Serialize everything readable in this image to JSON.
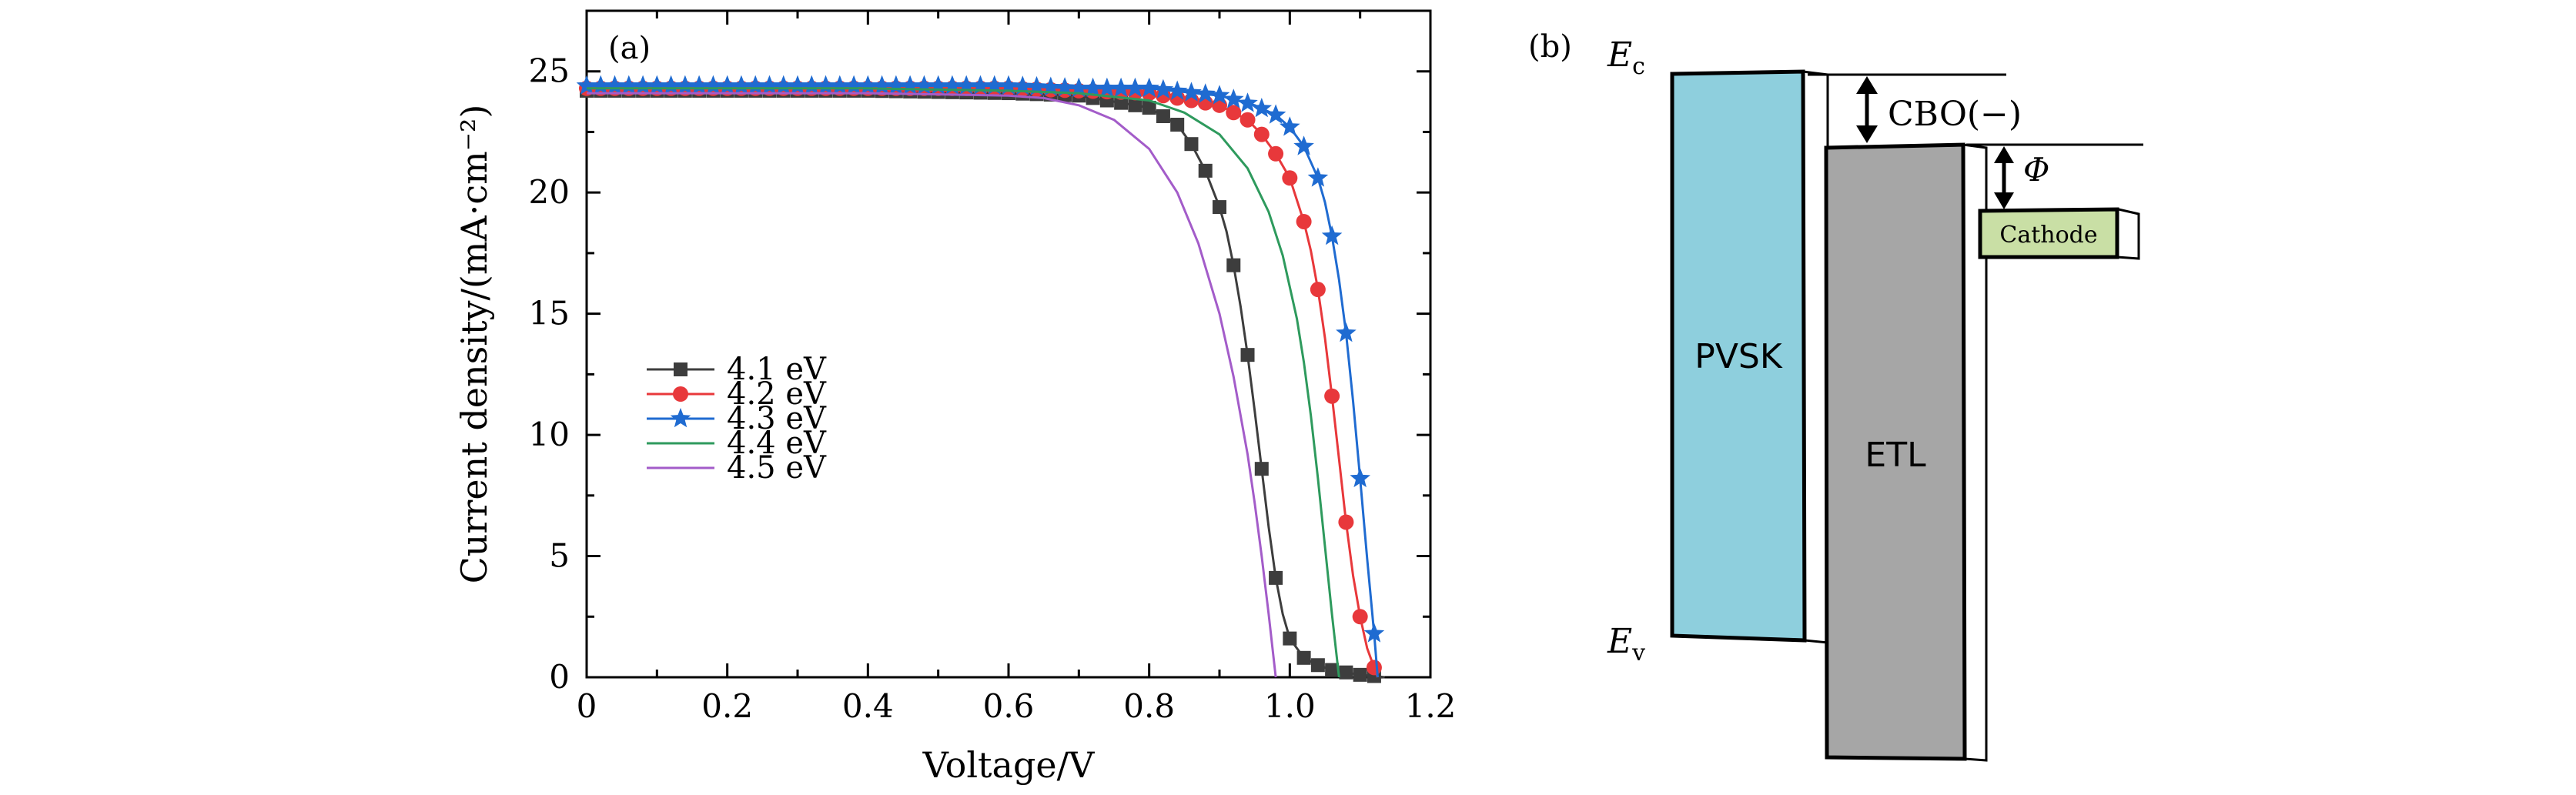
{
  "chart_data": {
    "type": "line",
    "panel_label": "(a)",
    "xlabel": "Voltage/V",
    "ylabel": "Current density/(mA·cm⁻²)",
    "xlim": [
      0,
      1.2
    ],
    "ylim": [
      0,
      27.5
    ],
    "xticks": [
      0,
      0.2,
      0.4,
      0.6,
      0.8,
      1.0,
      1.2
    ],
    "xtick_labels": [
      "0",
      "0.2",
      "0.4",
      "0.6",
      "0.8",
      "1.0",
      "1.2"
    ],
    "yticks": [
      0,
      5,
      10,
      15,
      20,
      25
    ],
    "ytick_labels": [
      "0",
      "5",
      "10",
      "15",
      "20",
      "25"
    ],
    "grid": false,
    "legend_position": "lower-left",
    "series": [
      {
        "name": "4.1 eV",
        "color": "#3d3d3d",
        "marker": "square",
        "jsc": 24.2,
        "voc": 1.135,
        "x": [
          0,
          0.2,
          0.4,
          0.6,
          0.7,
          0.8,
          0.84,
          0.86,
          0.88,
          0.9,
          0.91,
          0.92,
          0.93,
          0.94,
          0.95,
          0.96,
          0.97,
          0.98,
          0.99,
          1.0,
          1.02,
          1.04,
          1.06,
          1.08,
          1.1,
          1.12,
          1.135
        ],
        "y": [
          24.2,
          24.2,
          24.2,
          24.1,
          24.0,
          23.5,
          22.8,
          22.0,
          20.9,
          19.4,
          18.4,
          17.0,
          15.3,
          13.3,
          11.0,
          8.6,
          6.2,
          4.1,
          2.6,
          1.6,
          0.8,
          0.5,
          0.3,
          0.2,
          0.1,
          0.05,
          0
        ]
      },
      {
        "name": "4.2 eV",
        "color": "#e8383b",
        "marker": "circle",
        "jsc": 24.3,
        "voc": 1.125,
        "x": [
          0,
          0.2,
          0.4,
          0.6,
          0.7,
          0.8,
          0.9,
          0.94,
          0.96,
          0.98,
          1.0,
          1.02,
          1.03,
          1.04,
          1.05,
          1.06,
          1.07,
          1.08,
          1.09,
          1.1,
          1.11,
          1.12,
          1.125
        ],
        "y": [
          24.3,
          24.3,
          24.3,
          24.3,
          24.2,
          24.1,
          23.6,
          23.0,
          22.4,
          21.6,
          20.6,
          18.8,
          17.6,
          16.0,
          14.0,
          11.6,
          9.0,
          6.4,
          4.2,
          2.5,
          1.2,
          0.4,
          0
        ]
      },
      {
        "name": "4.3 eV",
        "color": "#1f6bd1",
        "marker": "star",
        "jsc": 24.4,
        "voc": 1.125,
        "x": [
          0,
          0.2,
          0.4,
          0.6,
          0.7,
          0.8,
          0.9,
          0.95,
          0.98,
          1.0,
          1.02,
          1.04,
          1.05,
          1.06,
          1.07,
          1.08,
          1.09,
          1.1,
          1.11,
          1.12,
          1.125
        ],
        "y": [
          24.4,
          24.4,
          24.4,
          24.4,
          24.3,
          24.3,
          24.0,
          23.6,
          23.2,
          22.7,
          21.9,
          20.6,
          19.6,
          18.2,
          16.4,
          14.2,
          11.4,
          8.2,
          4.9,
          1.8,
          0
        ]
      },
      {
        "name": "4.4 eV",
        "color": "#2e9a5d",
        "marker": "none",
        "jsc": 24.3,
        "voc": 1.07,
        "x": [
          0,
          0.2,
          0.4,
          0.6,
          0.7,
          0.8,
          0.85,
          0.9,
          0.94,
          0.97,
          0.99,
          1.01,
          1.02,
          1.03,
          1.04,
          1.05,
          1.06,
          1.07
        ],
        "y": [
          24.3,
          24.3,
          24.3,
          24.2,
          24.1,
          23.8,
          23.3,
          22.4,
          21.0,
          19.2,
          17.4,
          14.8,
          13.0,
          10.8,
          8.2,
          5.4,
          2.6,
          0
        ]
      },
      {
        "name": "4.5 eV",
        "color": "#a35cc9",
        "marker": "none",
        "jsc": 24.1,
        "voc": 0.98,
        "x": [
          0,
          0.2,
          0.4,
          0.6,
          0.65,
          0.7,
          0.75,
          0.8,
          0.84,
          0.87,
          0.9,
          0.92,
          0.94,
          0.95,
          0.96,
          0.97,
          0.98
        ],
        "y": [
          24.1,
          24.1,
          24.1,
          24.0,
          23.9,
          23.6,
          23.0,
          21.8,
          20.0,
          17.9,
          15.0,
          12.4,
          9.2,
          7.2,
          5.0,
          2.6,
          0
        ]
      }
    ]
  },
  "diagram": {
    "panel_label": "(b)",
    "ec_label_main": "E",
    "ec_label_sub": "c",
    "ev_label_main": "E",
    "ev_label_sub": "v",
    "cbo_label": "CBO(−)",
    "phi_label": "Φ",
    "pvsk_label": "PVSK",
    "etl_label": "ETL",
    "cathode_label": "Cathode",
    "colors": {
      "pvsk": "#8ecfdd",
      "etl": "#a6a6a6",
      "cathode": "#c9dfa5"
    }
  }
}
